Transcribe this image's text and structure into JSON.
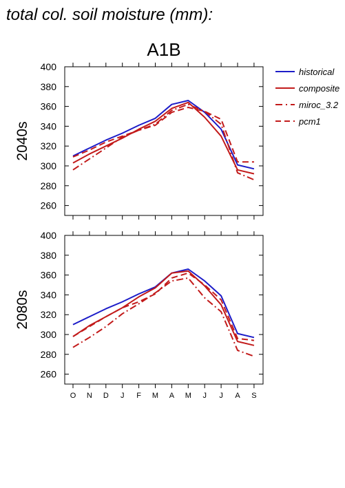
{
  "figure": {
    "title": "total col. soil moisture (mm):",
    "scenario": "A1B"
  },
  "legend": {
    "placement": "right",
    "entries": [
      {
        "name": "historical",
        "color": "#1c1cc8",
        "dash": "solid"
      },
      {
        "name": "composite",
        "color": "#c21a1a",
        "dash": "solid"
      },
      {
        "name": "miroc_3.2",
        "color": "#c21a1a",
        "dash": "dashdot"
      },
      {
        "name": "pcm1",
        "color": "#c21a1a",
        "dash": "dash"
      }
    ]
  },
  "chart_data": [
    {
      "type": "line",
      "panel_label": "2040s",
      "categories": [
        "O",
        "N",
        "D",
        "J",
        "F",
        "M",
        "A",
        "M",
        "J",
        "J",
        "A",
        "S"
      ],
      "ylim": [
        250,
        400
      ],
      "yticks": [
        260,
        280,
        300,
        320,
        340,
        360,
        380,
        400
      ],
      "grid": false,
      "series": [
        {
          "name": "historical",
          "color": "#1c1cc8",
          "dash": "solid",
          "values": [
            310,
            318,
            326,
            333,
            341,
            348,
            362,
            366,
            354,
            337,
            301,
            297
          ]
        },
        {
          "name": "composite",
          "color": "#c21a1a",
          "dash": "solid",
          "values": [
            303,
            312,
            320,
            328,
            337,
            345,
            358,
            364,
            349,
            330,
            296,
            292
          ]
        },
        {
          "name": "miroc_3.2",
          "color": "#c21a1a",
          "dash": "dashdot",
          "values": [
            296,
            307,
            318,
            329,
            336,
            342,
            356,
            362,
            355,
            342,
            293,
            286
          ]
        },
        {
          "name": "pcm1",
          "color": "#c21a1a",
          "dash": "dash",
          "values": [
            309,
            316,
            324,
            330,
            336,
            341,
            354,
            359,
            355,
            347,
            304,
            304
          ]
        }
      ]
    },
    {
      "type": "line",
      "panel_label": "2080s",
      "categories": [
        "O",
        "N",
        "D",
        "J",
        "F",
        "M",
        "A",
        "M",
        "J",
        "J",
        "A",
        "S"
      ],
      "ylim": [
        250,
        400
      ],
      "yticks": [
        260,
        280,
        300,
        320,
        340,
        360,
        380,
        400
      ],
      "grid": false,
      "series": [
        {
          "name": "historical",
          "color": "#1c1cc8",
          "dash": "solid",
          "values": [
            310,
            318,
            326,
            333,
            341,
            348,
            362,
            366,
            354,
            339,
            301,
            297
          ]
        },
        {
          "name": "composite",
          "color": "#c21a1a",
          "dash": "solid",
          "values": [
            298,
            309,
            318,
            327,
            338,
            347,
            362,
            364,
            349,
            330,
            293,
            289
          ]
        },
        {
          "name": "miroc_3.2",
          "color": "#c21a1a",
          "dash": "dashdot",
          "values": [
            287,
            297,
            308,
            321,
            331,
            342,
            354,
            357,
            337,
            323,
            284,
            278
          ]
        },
        {
          "name": "pcm1",
          "color": "#c21a1a",
          "dash": "dash",
          "values": [
            298,
            308,
            318,
            327,
            333,
            341,
            357,
            362,
            350,
            335,
            296,
            294
          ]
        }
      ]
    }
  ]
}
